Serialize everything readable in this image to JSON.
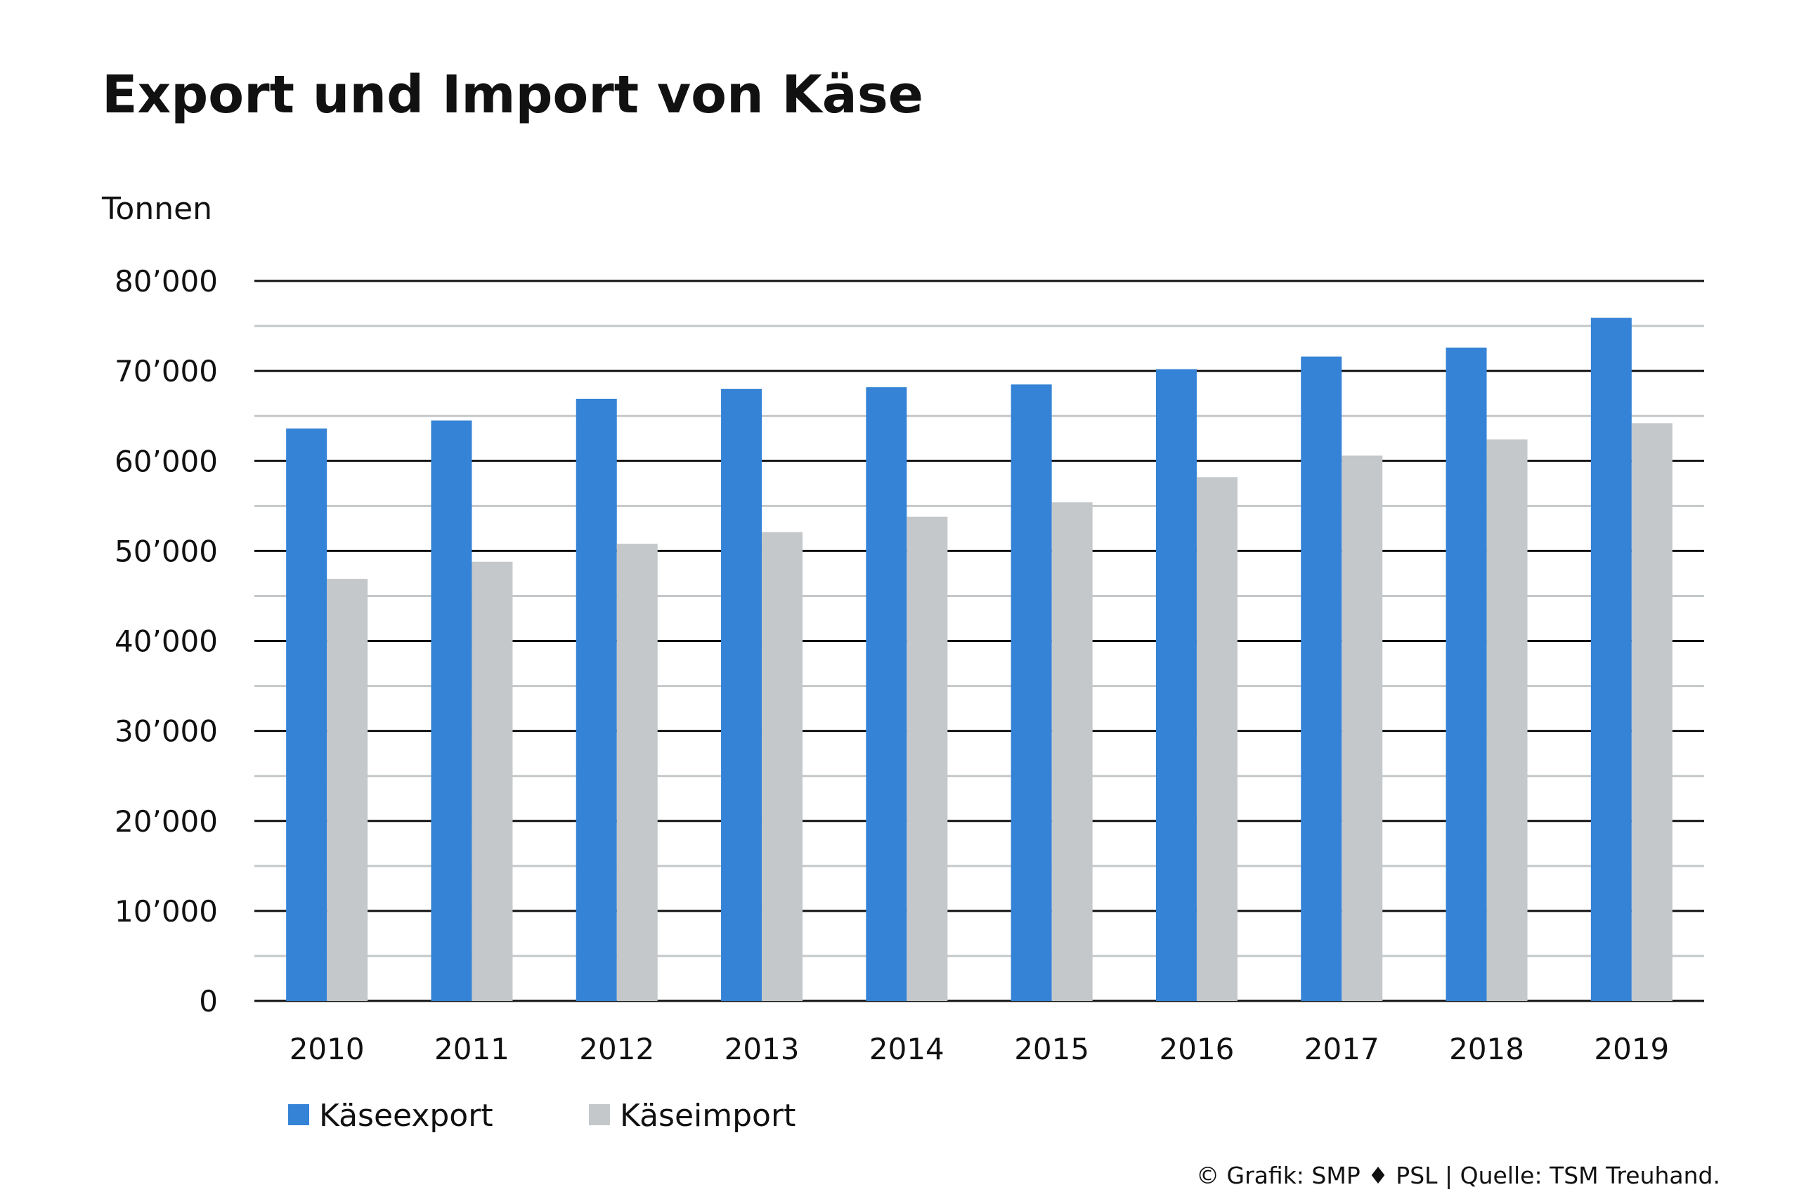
{
  "chart_data": {
    "type": "bar",
    "title": "Export und Import von Käse",
    "ylabel": "Tonnen",
    "xlabel": "",
    "categories": [
      "2010",
      "2011",
      "2012",
      "2013",
      "2014",
      "2015",
      "2016",
      "2017",
      "2018",
      "2019"
    ],
    "series": [
      {
        "name": "Käseexport",
        "color": "#3583d6",
        "values": [
          63600,
          64500,
          66900,
          68000,
          68200,
          68500,
          70200,
          71600,
          72600,
          75900
        ]
      },
      {
        "name": "Käseimport",
        "color": "#c4c8ca",
        "values": [
          46900,
          48800,
          50800,
          52100,
          53800,
          55400,
          58200,
          60600,
          62400,
          64200
        ]
      }
    ],
    "ylim": [
      0,
      80000
    ],
    "yticks": [
      0,
      10000,
      20000,
      30000,
      40000,
      50000,
      60000,
      70000,
      80000
    ],
    "ytick_labels": [
      "0",
      "10’000",
      "20’000",
      "30’000",
      "40’000",
      "50’000",
      "60’000",
      "70’000",
      "80’000"
    ],
    "minor_gridlines": [
      5000,
      15000,
      25000,
      35000,
      45000,
      55000,
      65000,
      75000
    ],
    "grid": true,
    "legend_position": "bottom-left",
    "credit": "© Grafik: SMP ♦ PSL | Quelle: TSM Treuhand."
  }
}
